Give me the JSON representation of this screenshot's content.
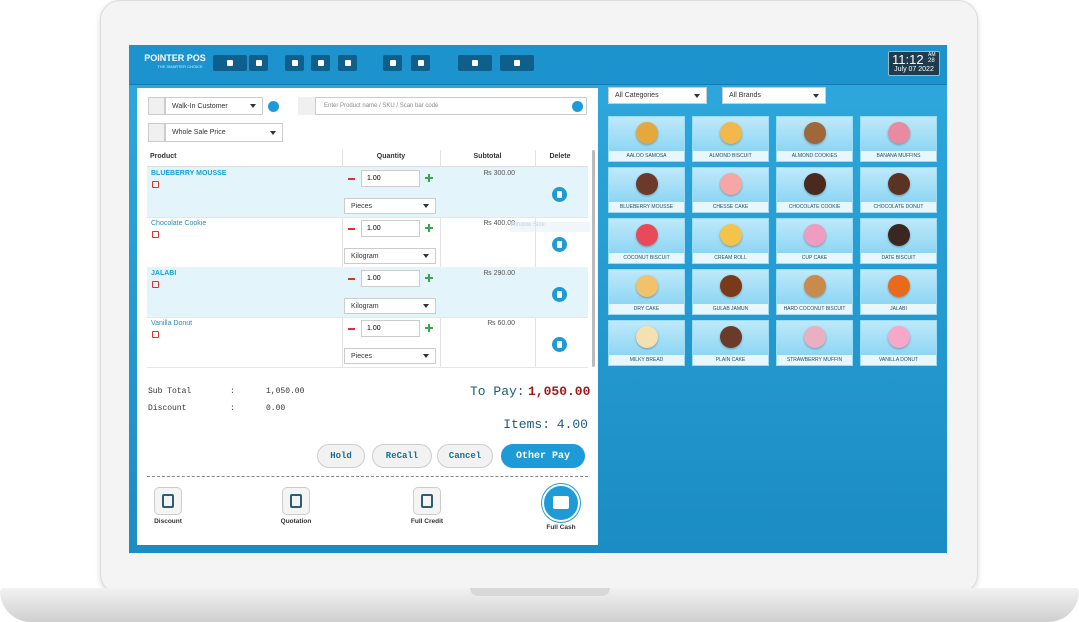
{
  "header": {
    "brand": "POINTER POS",
    "tagline": "THE SMARTER CHOICE",
    "time": "11:12",
    "am_pm": "AM",
    "seconds": "28",
    "date": "July 07 2022"
  },
  "order": {
    "customer": "Walk-In Customer",
    "search_placeholder": "Enter Product name / SKU / Scan bar code",
    "price_type": "Whole Sale Price",
    "columns": [
      "Product",
      "Quantity",
      "Subtotal",
      "Delete"
    ],
    "rows": [
      {
        "name": "BLUEBERRY MOUSSE",
        "quantity": "1.00",
        "unit": "Pieces",
        "subtotal": "₨ 300.00"
      },
      {
        "name": "Chocolate Cookie",
        "quantity": "1.00",
        "unit": "Kilogram",
        "subtotal": "₨ 400.00"
      },
      {
        "name": "JALABI",
        "quantity": "1.00",
        "unit": "Kilogram",
        "subtotal": "₨ 290.00"
      },
      {
        "name": "Vanilla Donut",
        "quantity": "1.00",
        "unit": "Pieces",
        "subtotal": "₨ 60.00"
      }
    ],
    "watermark": "Window Size"
  },
  "totals": {
    "sub_total_label": "Sub Total",
    "sub_total": "1,050.00",
    "discount_label": "Discount",
    "discount": "0.00",
    "separator": ":",
    "to_pay_label": "To Pay:",
    "to_pay": "1,050.00",
    "items_label": "Items:",
    "items": "4.00"
  },
  "buttons": [
    "Hold",
    "ReCall",
    "Cancel",
    "Other Pay"
  ],
  "actions": [
    "Discount",
    "Quotation",
    "Full Credit",
    "Full Cash"
  ],
  "filters": {
    "category": "All Categories",
    "brand": "All Brands"
  },
  "products": [
    "AALOO SAMOSA",
    "ALMOND BISCUIT",
    "ALMOND COOKIES",
    "BANANA MUFFINS",
    "BLUEBERRY MOUSSE",
    "CHESSE CAKE",
    "CHOCOLATE COOKIE",
    "CHOCOLATE DONUT",
    "COCONUT BISCUIT",
    "CREAM ROLL",
    "CUP CAKE",
    "DATE BISCUIT",
    "DRY CAKE",
    "GULAB JAMUN",
    "HARD COCONUT BISCUIT",
    "JALABI",
    "MILKY BREAD",
    "PLAIN CAKE",
    "STRAWBERRY MUFFIN",
    "VANILLA DONUT"
  ]
}
